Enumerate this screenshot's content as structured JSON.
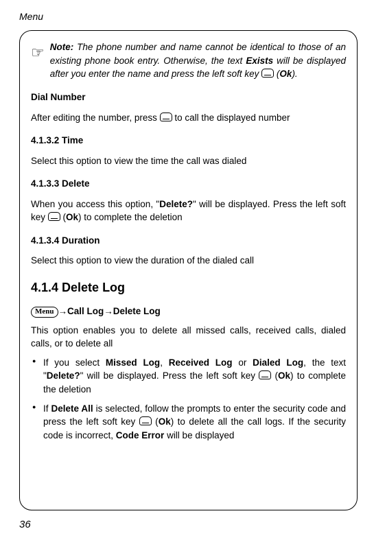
{
  "header": "Menu",
  "note": {
    "label": "Note:",
    "text_before": " The phone number and name cannot be identical to those of an existing phone book entry. Otherwise, the text ",
    "exists": "Exists",
    "text_mid": " will be displayed after you enter the name and press the left soft key ",
    "text_after": " (",
    "ok": "Ok",
    "close": ")."
  },
  "dial": {
    "heading": "Dial Number",
    "text_before": "After editing the number, press ",
    "text_after": " to call the displayed number"
  },
  "time": {
    "heading": "4.1.3.2 Time",
    "text": "Select this option to view the time the call was dialed"
  },
  "delete": {
    "heading": "4.1.3.3 Delete",
    "text_before": "When you access this option, \"",
    "deleteq": "Delete?",
    "text_mid": "\" will be displayed. Press the left soft key ",
    "text_paren_open": " (",
    "ok": "Ok",
    "text_after": ") to complete the deletion"
  },
  "duration": {
    "heading": "4.1.3.4 Duration",
    "text": "Select this option to view the duration of the dialed call"
  },
  "deletelog": {
    "heading": "4.1.4 Delete Log",
    "menu_label": "Menu",
    "arrow": "→",
    "bc1": "Call Log",
    "bc2": "Delete Log",
    "intro": "This option enables you to delete all missed calls, received calls, dialed calls, or to delete all",
    "b1_1": "If you select ",
    "b1_missed": "Missed Log",
    "b1_2": ", ",
    "b1_received": "Received Log",
    "b1_3": " or ",
    "b1_dialed": "Dialed Log",
    "b1_4": ", the text \"",
    "b1_deleteq": "Delete?",
    "b1_5": "\" will be displayed. Press the left soft key ",
    "b1_6": " (",
    "b1_ok": "Ok",
    "b1_7": ") to complete the deletion",
    "b2_1": "If ",
    "b2_deleteall": "Delete All",
    "b2_2": " is selected, follow the prompts to enter the security code and press the left soft key ",
    "b2_3": " (",
    "b2_ok": "Ok",
    "b2_4": ") to delete all the call logs. If the security code is incorrect, ",
    "b2_codeerr": "Code Error",
    "b2_5": " will be displayed"
  },
  "page_number": "36"
}
